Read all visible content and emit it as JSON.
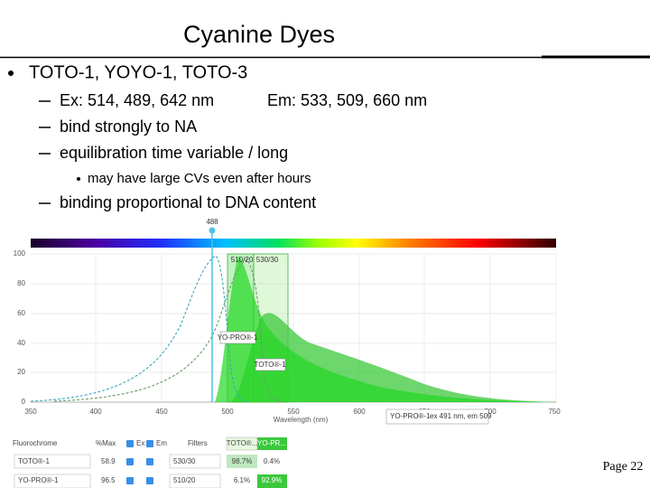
{
  "slide": {
    "title": "Cyanine Dyes",
    "bullet": "TOTO-1, YOYO-1, TOTO-3",
    "items": [
      {
        "text": "Ex:  514, 489, 642 nm",
        "em": "Em: 533, 509, 660 nm"
      },
      {
        "text": "bind strongly to NA"
      },
      {
        "text": "equilibration time variable / long",
        "note": "may have large CVs even after hours"
      },
      {
        "text": "binding proportional to DNA content"
      }
    ]
  },
  "viewer": {
    "laser": "488",
    "yticks": [
      "100",
      "80",
      "60",
      "40",
      "20",
      "0"
    ],
    "xticks": [
      "350",
      "400",
      "450",
      "500",
      "550",
      "600",
      "650",
      "700",
      "750"
    ],
    "xlabel": "Wavelength (nm)",
    "filters": [
      "510/20",
      "530/30"
    ],
    "curve_labels": [
      "YO-PRO®-1",
      "TOTO®-1"
    ],
    "tooltip": {
      "name": "YO-PRO®-1",
      "info": "ex 491 nm, em 509"
    },
    "table": {
      "header": [
        "Fluorochrome",
        "%Max",
        "Ex",
        "Em",
        "Filters"
      ],
      "tabs": [
        "TOTO®...",
        "YO-PR..."
      ],
      "rows": [
        [
          "TOTO®-1",
          "58.9",
          "530/30",
          "98.7%",
          "0.4%"
        ],
        [
          "YO-PRO®-1",
          "96.5",
          "510/20",
          "6.1%",
          "92.9%"
        ]
      ]
    }
  },
  "footer": {
    "page": "Page 22"
  }
}
